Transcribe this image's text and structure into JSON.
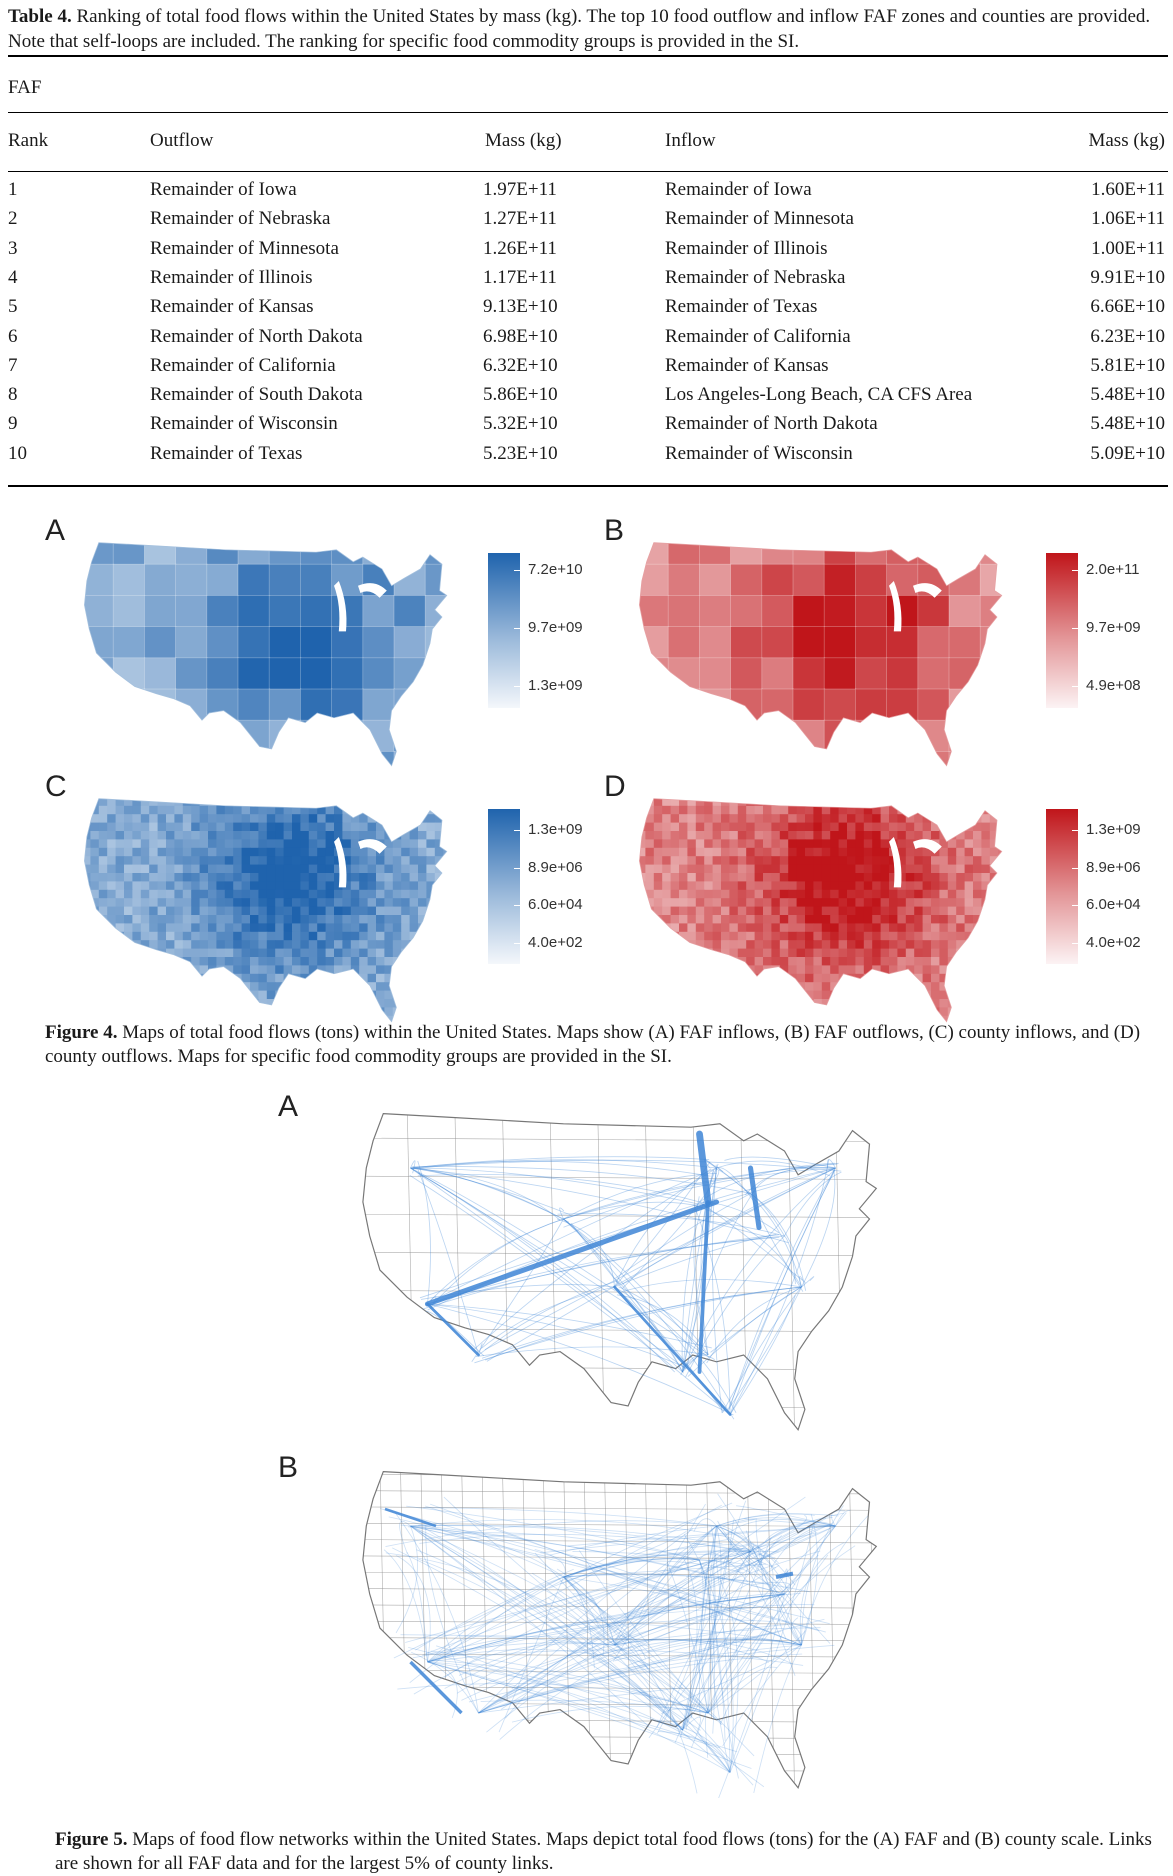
{
  "table": {
    "caption_label": "Table 4.",
    "caption_text": "Ranking of total food flows within the United States by mass (kg). The top 10 food outflow and inflow FAF zones and counties are provided. Note that self-loops are included. The ranking for specific food commodity groups is provided in the SI.",
    "section": "FAF",
    "headers": {
      "rank": "Rank",
      "outflow": "Outflow",
      "outflow_mass": "Mass (kg)",
      "inflow": "Inflow",
      "inflow_mass": "Mass (kg)"
    },
    "rows": [
      {
        "rank": "1",
        "outflow": "Remainder of Iowa",
        "outflow_mass": "1.97E+11",
        "inflow": "Remainder of Iowa",
        "inflow_mass": "1.60E+11"
      },
      {
        "rank": "2",
        "outflow": "Remainder of Nebraska",
        "outflow_mass": "1.27E+11",
        "inflow": "Remainder of Minnesota",
        "inflow_mass": "1.06E+11"
      },
      {
        "rank": "3",
        "outflow": "Remainder of Minnesota",
        "outflow_mass": "1.26E+11",
        "inflow": "Remainder of Illinois",
        "inflow_mass": "1.00E+11"
      },
      {
        "rank": "4",
        "outflow": "Remainder of Illinois",
        "outflow_mass": "1.17E+11",
        "inflow": "Remainder of Nebraska",
        "inflow_mass": "9.91E+10"
      },
      {
        "rank": "5",
        "outflow": "Remainder of Kansas",
        "outflow_mass": "9.13E+10",
        "inflow": "Remainder of Texas",
        "inflow_mass": "6.66E+10"
      },
      {
        "rank": "6",
        "outflow": "Remainder of North Dakota",
        "outflow_mass": "6.98E+10",
        "inflow": "Remainder of California",
        "inflow_mass": "6.23E+10"
      },
      {
        "rank": "7",
        "outflow": "Remainder of California",
        "outflow_mass": "6.32E+10",
        "inflow": "Remainder of Kansas",
        "inflow_mass": "5.81E+10"
      },
      {
        "rank": "8",
        "outflow": "Remainder of South Dakota",
        "outflow_mass": "5.86E+10",
        "inflow": "Los Angeles-Long Beach, CA CFS Area",
        "inflow_mass": "5.48E+10"
      },
      {
        "rank": "9",
        "outflow": "Remainder of Wisconsin",
        "outflow_mass": "5.32E+10",
        "inflow": "Remainder of North Dakota",
        "inflow_mass": "5.48E+10"
      },
      {
        "rank": "10",
        "outflow": "Remainder of Texas",
        "outflow_mass": "5.23E+10",
        "inflow": "Remainder of Wisconsin",
        "inflow_mass": "5.09E+10"
      }
    ]
  },
  "figure4": {
    "panels": [
      {
        "letter": "A",
        "scheme": "blue",
        "legend": [
          "7.2e+10",
          "9.7e+09",
          "1.3e+09"
        ]
      },
      {
        "letter": "B",
        "scheme": "red",
        "legend": [
          "2.0e+11",
          "9.7e+09",
          "4.9e+08"
        ]
      },
      {
        "letter": "C",
        "scheme": "blue",
        "legend": [
          "1.3e+09",
          "8.9e+06",
          "6.0e+04",
          "4.0e+02"
        ]
      },
      {
        "letter": "D",
        "scheme": "red",
        "legend": [
          "1.3e+09",
          "8.9e+06",
          "6.0e+04",
          "4.0e+02"
        ]
      }
    ],
    "caption_label": "Figure 4.",
    "caption_text": "Maps of total food flows (tons) within the United States. Maps show (A) FAF inflows, (B) FAF outflows, (C) county inflows, and (D) county outflows. Maps for specific food commodity groups are provided in the SI.",
    "colors": {
      "blue_dark": "#1f63ad",
      "blue_light": "#e8eefa",
      "red_dark": "#c0151a",
      "red_light": "#fde8e0"
    }
  },
  "figure5": {
    "panels": [
      {
        "letter": "A"
      },
      {
        "letter": "B"
      }
    ],
    "caption_label": "Figure 5.",
    "caption_text": "Maps of food flow networks within the United States. Maps depict total food flows (tons) for the (A) FAF and (B) county scale. Links are shown for all FAF data and for the largest 5% of county links.",
    "colors": {
      "link": "#3f86d6",
      "boundary": "#8a8a8a"
    }
  }
}
